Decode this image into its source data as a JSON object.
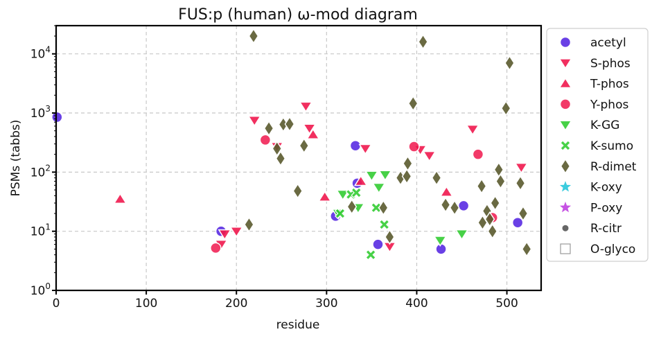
{
  "chart_data": {
    "type": "scatter",
    "title": "FUS:p (human) ω-mod diagram",
    "xlabel": "residue",
    "ylabel": "PSMs (tabbs)",
    "xlim": [
      0,
      538
    ],
    "ylim": [
      1,
      30000
    ],
    "yscale": "log",
    "xticks": [
      0,
      100,
      200,
      300,
      400,
      500
    ],
    "yticks": [
      {
        "value": 1,
        "base": "10",
        "exp": "0"
      },
      {
        "value": 10,
        "base": "10",
        "exp": "1"
      },
      {
        "value": 100,
        "base": "10",
        "exp": "2"
      },
      {
        "value": 1000,
        "base": "10",
        "exp": "3"
      },
      {
        "value": 10000,
        "base": "10",
        "exp": "4"
      }
    ],
    "grid": true,
    "legend_position": "outside-right",
    "series": [
      {
        "name": "acetyl",
        "marker": "circle",
        "color": "#4f1fe0",
        "points": [
          [
            1,
            850
          ],
          [
            183,
            10
          ],
          [
            310,
            18
          ],
          [
            332,
            280
          ],
          [
            334,
            65
          ],
          [
            357,
            6
          ],
          [
            427,
            5
          ],
          [
            452,
            27
          ],
          [
            512,
            14
          ]
        ]
      },
      {
        "name": "S-phos",
        "marker": "triangle-down",
        "color": "#f0184e",
        "points": [
          [
            183,
            6
          ],
          [
            187,
            9
          ],
          [
            200,
            10
          ],
          [
            220,
            750
          ],
          [
            245,
            270
          ],
          [
            277,
            1300
          ],
          [
            281,
            550
          ],
          [
            343,
            250
          ],
          [
            370,
            5.5
          ],
          [
            404,
            240
          ],
          [
            414,
            190
          ],
          [
            462,
            530
          ],
          [
            516,
            120
          ]
        ]
      },
      {
        "name": "T-phos",
        "marker": "triangle-up",
        "color": "#f0184e",
        "points": [
          [
            71,
            35
          ],
          [
            285,
            430
          ],
          [
            298,
            38
          ],
          [
            338,
            70
          ],
          [
            433,
            46
          ]
        ]
      },
      {
        "name": "Y-phos",
        "marker": "circle",
        "color": "#f0184e",
        "points": [
          [
            177,
            5.2
          ],
          [
            232,
            350
          ],
          [
            397,
            270
          ],
          [
            468,
            200
          ],
          [
            484,
            17
          ]
        ]
      },
      {
        "name": "K-GG",
        "marker": "triangle-down",
        "color": "#33cc33",
        "points": [
          [
            313,
            20
          ],
          [
            318,
            42
          ],
          [
            335,
            25
          ],
          [
            350,
            88
          ],
          [
            358,
            55
          ],
          [
            365,
            90
          ],
          [
            426,
            7
          ],
          [
            450,
            9
          ]
        ]
      },
      {
        "name": "K-sumo",
        "marker": "x",
        "color": "#33cc33",
        "points": [
          [
            315,
            20
          ],
          [
            327,
            42
          ],
          [
            333,
            45
          ],
          [
            349,
            4
          ],
          [
            355,
            25
          ],
          [
            364,
            13
          ]
        ]
      },
      {
        "name": "R-dimet",
        "marker": "diamond",
        "color": "#5a5a2e",
        "points": [
          [
            214,
            13
          ],
          [
            219,
            20000
          ],
          [
            236,
            550
          ],
          [
            245,
            250
          ],
          [
            249,
            170
          ],
          [
            252,
            640
          ],
          [
            259,
            650
          ],
          [
            268,
            48
          ],
          [
            275,
            280
          ],
          [
            328,
            26
          ],
          [
            363,
            25
          ],
          [
            370,
            8
          ],
          [
            382,
            80
          ],
          [
            389,
            85
          ],
          [
            390,
            140
          ],
          [
            396,
            1450
          ],
          [
            407,
            16000
          ],
          [
            422,
            80
          ],
          [
            432,
            28
          ],
          [
            442,
            25
          ],
          [
            472,
            58
          ],
          [
            473,
            14
          ],
          [
            478,
            22
          ],
          [
            481,
            16
          ],
          [
            484,
            10
          ],
          [
            487,
            30
          ],
          [
            491,
            110
          ],
          [
            493,
            70
          ],
          [
            499,
            1200
          ],
          [
            503,
            7000
          ],
          [
            515,
            65
          ],
          [
            518,
            20
          ],
          [
            522,
            5
          ]
        ]
      },
      {
        "name": "K-oxy",
        "marker": "star",
        "color": "#26c6da",
        "points": []
      },
      {
        "name": "P-oxy",
        "marker": "star",
        "color": "#c040e0",
        "points": []
      },
      {
        "name": "R-citr",
        "marker": "dot",
        "color": "#666666",
        "points": []
      },
      {
        "name": "O-glyco",
        "marker": "square-open",
        "color": "#999999",
        "points": []
      }
    ]
  }
}
